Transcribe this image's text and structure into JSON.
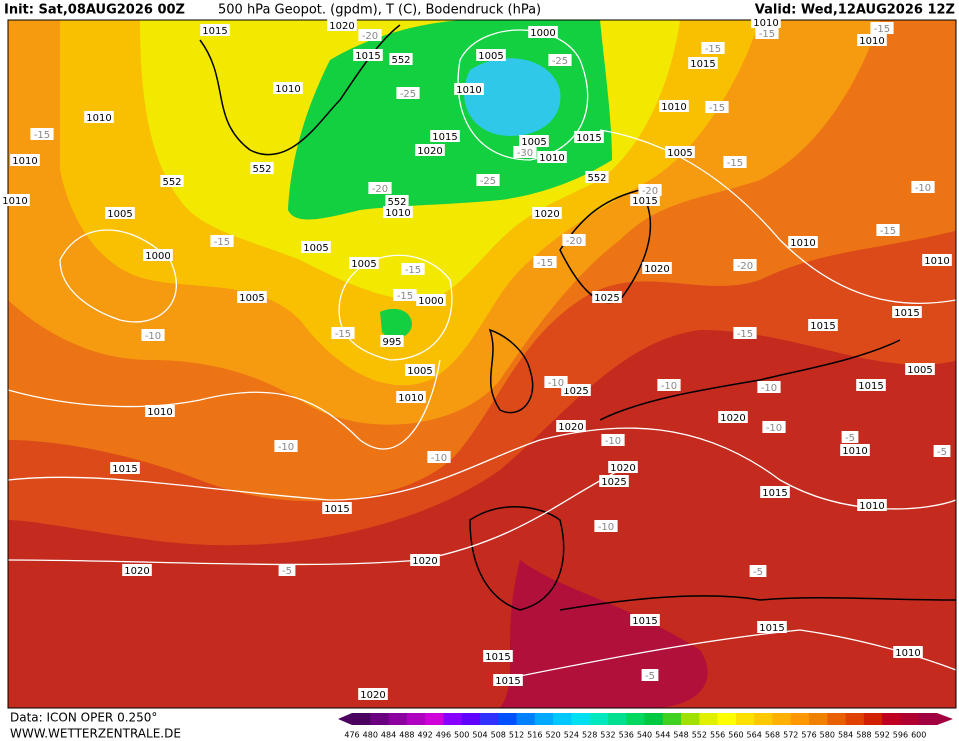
{
  "header": {
    "init": "Init: Sat,08AUG2026 00Z",
    "title": "500 hPa Geopot. (gpdm), T (C), Bodendruck (hPa)",
    "valid": "Valid: Wed,12AUG2026 12Z"
  },
  "footer": {
    "data": "Data: ICON OPER 0.250°",
    "site": "WWW.WETTERZENTRALE.DE"
  },
  "colorbar": {
    "values": [
      476,
      480,
      484,
      488,
      492,
      496,
      500,
      504,
      508,
      512,
      516,
      520,
      524,
      528,
      532,
      536,
      540,
      544,
      548,
      552,
      556,
      560,
      564,
      568,
      572,
      576,
      580,
      584,
      588,
      592,
      596,
      600
    ],
    "colors": [
      "#4b0060",
      "#6a0080",
      "#8c00a0",
      "#b000c0",
      "#d000d8",
      "#8800ff",
      "#6000ff",
      "#3030ff",
      "#0050ff",
      "#0080ff",
      "#00a8ff",
      "#00c8ff",
      "#00e0f0",
      "#00e8c0",
      "#00e090",
      "#00d860",
      "#00c840",
      "#40d020",
      "#a0e000",
      "#e0f000",
      "#ffff00",
      "#ffe000",
      "#ffc800",
      "#ffb000",
      "#ff9800",
      "#f08000",
      "#e86000",
      "#e04000",
      "#d02000",
      "#c00020",
      "#b00030",
      "#a00040"
    ]
  },
  "pressure_labels": [
    "1015",
    "1020",
    "1015",
    "1010",
    "1010",
    "1010",
    "1010",
    "1005",
    "1000",
    "1005",
    "1010",
    "1015",
    "1015",
    "1020",
    "1020",
    "1020",
    "1015",
    "1015",
    "1015",
    "1015",
    "1010",
    "1010",
    "1015",
    "1020",
    "1025",
    "1020",
    "1025",
    "1020",
    "1010",
    "1015",
    "1005",
    "1015",
    "1015",
    "1010",
    "1010",
    "1020",
    "1025",
    "1020",
    "1015",
    "1005",
    "1010",
    "1015",
    "1010",
    "1010",
    "1000",
    "1005",
    "1010",
    "1015",
    "1020",
    "1005",
    "1010",
    "1015",
    "1010",
    "1005",
    "1005",
    "1000",
    "995",
    "1005",
    "1010"
  ],
  "temperature_labels": [
    "-15",
    "-15",
    "-10",
    "-15",
    "-15",
    "-15",
    "-10",
    "-10",
    "-5",
    "-10",
    "-5",
    "-5",
    "-10",
    "-10",
    "-10",
    "-10",
    "-10",
    "-5",
    "-5",
    "-15",
    "-20",
    "-15",
    "-20",
    "-15",
    "-10",
    "-15",
    "-20",
    "-15",
    "-15",
    "-15",
    "-20",
    "-25",
    "-30",
    "-25",
    "-25",
    "-20",
    "-15"
  ],
  "geopotential_labels": [
    "552",
    "552",
    "552",
    "552",
    "552"
  ]
}
